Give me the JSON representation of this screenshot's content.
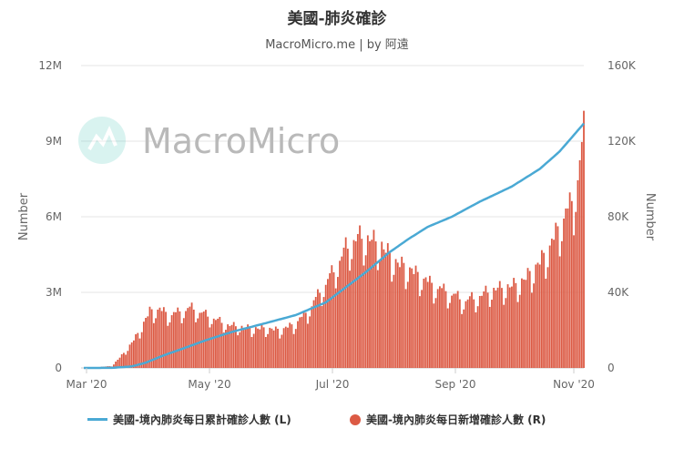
{
  "chart_data": {
    "type": "line+bar",
    "title": "美國-肺炎確診",
    "subtitle": "MacroMicro.me | by 阿遠",
    "watermark": "MacroMicro",
    "x_axis": {
      "ticks": [
        "Mar '20",
        "May '20",
        "Jul '20",
        "Sep '20",
        "Nov '20"
      ],
      "range": [
        "2020-03-01",
        "2020-11-06"
      ]
    },
    "y_left": {
      "label": "Number",
      "ticks": [
        "0",
        "3M",
        "6M",
        "9M",
        "12M"
      ],
      "range": [
        0,
        12000000
      ]
    },
    "y_right": {
      "label": "Number",
      "ticks": [
        "0",
        "40K",
        "80K",
        "120K",
        "160K"
      ],
      "range": [
        0,
        160000
      ]
    },
    "series": [
      {
        "name": "美國-境內肺炎每日累計確診人數 (L)",
        "type": "line",
        "axis": "left",
        "color": "#4aa9d4",
        "points": [
          [
            "2020-03-01",
            0
          ],
          [
            "2020-03-15",
            3000
          ],
          [
            "2020-03-25",
            60000
          ],
          [
            "2020-04-01",
            210000
          ],
          [
            "2020-04-10",
            500000
          ],
          [
            "2020-04-20",
            780000
          ],
          [
            "2020-05-01",
            1100000
          ],
          [
            "2020-05-15",
            1450000
          ],
          [
            "2020-06-01",
            1800000
          ],
          [
            "2020-06-15",
            2100000
          ],
          [
            "2020-06-30",
            2600000
          ],
          [
            "2020-07-10",
            3200000
          ],
          [
            "2020-07-20",
            3800000
          ],
          [
            "2020-08-01",
            4600000
          ],
          [
            "2020-08-10",
            5100000
          ],
          [
            "2020-08-20",
            5600000
          ],
          [
            "2020-09-01",
            6000000
          ],
          [
            "2020-09-15",
            6600000
          ],
          [
            "2020-10-01",
            7200000
          ],
          [
            "2020-10-15",
            7900000
          ],
          [
            "2020-10-25",
            8600000
          ],
          [
            "2020-11-06",
            9700000
          ]
        ]
      },
      {
        "name": "美國-境內肺炎每日新增確診人數 (R)",
        "type": "bar",
        "axis": "right",
        "color": "#dc5a44",
        "points": [
          [
            "2020-03-01",
            0
          ],
          [
            "2020-03-15",
            1000
          ],
          [
            "2020-03-22",
            9000
          ],
          [
            "2020-03-28",
            18000
          ],
          [
            "2020-04-03",
            30000
          ],
          [
            "2020-04-08",
            31000
          ],
          [
            "2020-04-13",
            28000
          ],
          [
            "2020-04-18",
            30000
          ],
          [
            "2020-04-24",
            32000
          ],
          [
            "2020-04-30",
            29000
          ],
          [
            "2020-05-06",
            26000
          ],
          [
            "2020-05-12",
            23000
          ],
          [
            "2020-05-18",
            22000
          ],
          [
            "2020-05-24",
            21000
          ],
          [
            "2020-05-31",
            21000
          ],
          [
            "2020-06-07",
            20000
          ],
          [
            "2020-06-14",
            23000
          ],
          [
            "2020-06-21",
            30000
          ],
          [
            "2020-06-28",
            42000
          ],
          [
            "2020-07-04",
            52000
          ],
          [
            "2020-07-10",
            64000
          ],
          [
            "2020-07-16",
            70000
          ],
          [
            "2020-07-22",
            69000
          ],
          [
            "2020-07-28",
            65000
          ],
          [
            "2020-08-04",
            56000
          ],
          [
            "2020-08-10",
            53000
          ],
          [
            "2020-08-17",
            48000
          ],
          [
            "2020-08-24",
            43000
          ],
          [
            "2020-08-31",
            40000
          ],
          [
            "2020-09-07",
            36000
          ],
          [
            "2020-09-14",
            38000
          ],
          [
            "2020-09-21",
            42000
          ],
          [
            "2020-09-28",
            43000
          ],
          [
            "2020-10-05",
            45000
          ],
          [
            "2020-10-12",
            52000
          ],
          [
            "2020-10-19",
            62000
          ],
          [
            "2020-10-26",
            78000
          ],
          [
            "2020-11-01",
            90000
          ],
          [
            "2020-11-04",
            108000
          ],
          [
            "2020-11-06",
            126000
          ]
        ]
      }
    ],
    "grid": true,
    "legend_position": "bottom"
  }
}
